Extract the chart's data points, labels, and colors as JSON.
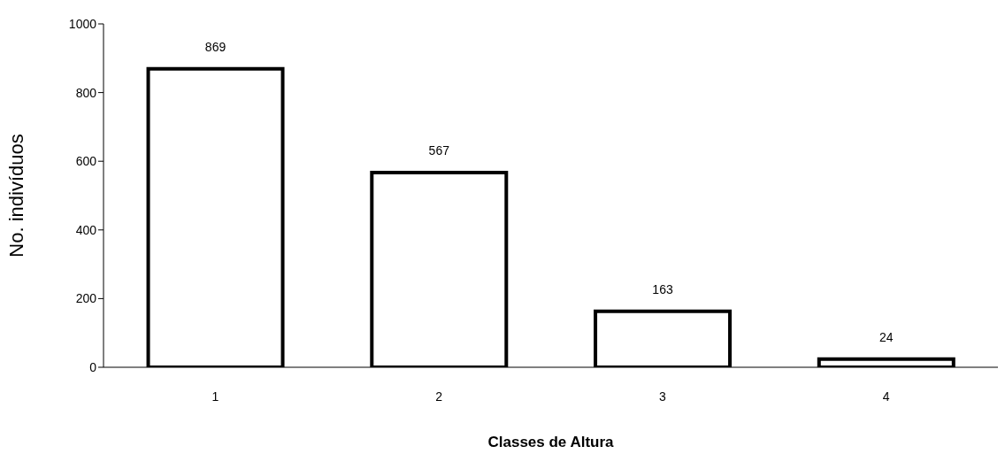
{
  "chart_data": {
    "type": "bar",
    "xlabel": "Classes de Altura",
    "ylabel": "No. indivíduos",
    "categories": [
      "1",
      "2",
      "3",
      "4"
    ],
    "values": [
      869,
      567,
      163,
      24
    ],
    "color": "#ffffff",
    "ylim": [
      0,
      1000
    ],
    "yticks": [
      0,
      200,
      400,
      600,
      800,
      1000
    ],
    "grid": false,
    "legend": false,
    "data_labels": true
  }
}
